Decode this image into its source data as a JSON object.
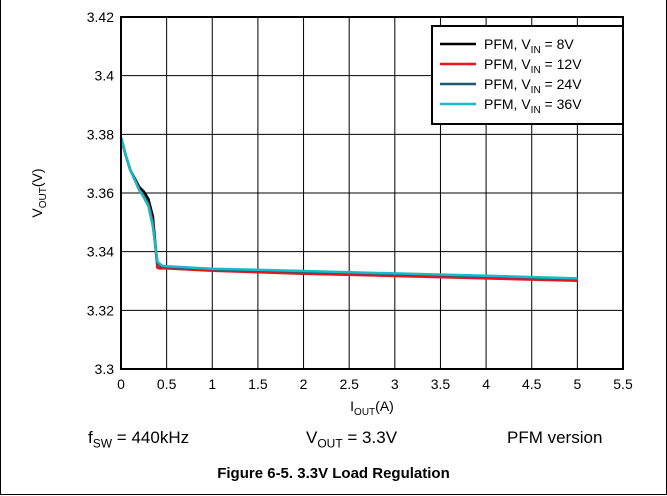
{
  "chart_data": {
    "type": "line",
    "xlabel": {
      "main": "I",
      "sub": "OUT",
      "unit": "(A)"
    },
    "ylabel": {
      "main": "V",
      "sub": "OUT",
      "unit": "(V)"
    },
    "xlim": [
      0,
      5.5
    ],
    "ylim": [
      3.3,
      3.42
    ],
    "xticks": [
      "0",
      "0.5",
      "1",
      "1.5",
      "2",
      "2.5",
      "3",
      "3.5",
      "4",
      "4.5",
      "5",
      "5.5"
    ],
    "yticks": [
      "3.3",
      "3.32",
      "3.34",
      "3.36",
      "3.38",
      "3.4",
      "3.42"
    ],
    "grid": true,
    "legend_position": "top-right",
    "series": [
      {
        "name": "PFM, V_IN = 8V",
        "label_main": "PFM, V",
        "label_sub": "IN",
        "label_rest": " = 8V",
        "color": "#000000",
        "x": [
          0,
          0.05,
          0.1,
          0.15,
          0.2,
          0.25,
          0.3,
          0.35,
          0.4,
          0.42,
          0.5,
          1,
          2,
          3,
          4,
          5
        ],
        "y": [
          3.379,
          3.373,
          3.368,
          3.365,
          3.362,
          3.3605,
          3.358,
          3.352,
          3.3345,
          3.3345,
          3.3345,
          3.3338,
          3.3328,
          3.332,
          3.3312,
          3.3303
        ]
      },
      {
        "name": "PFM, V_IN = 12V",
        "label_main": "PFM, V",
        "label_sub": "IN",
        "label_rest": " = 12V",
        "color": "#e8141e",
        "x": [
          0,
          0.05,
          0.1,
          0.15,
          0.2,
          0.25,
          0.3,
          0.35,
          0.4,
          0.42,
          0.5,
          1,
          2,
          3,
          4,
          5
        ],
        "y": [
          3.379,
          3.373,
          3.368,
          3.3645,
          3.361,
          3.359,
          3.3565,
          3.35,
          3.3345,
          3.3343,
          3.3343,
          3.3335,
          3.3325,
          3.3317,
          3.3309,
          3.3301
        ]
      },
      {
        "name": "PFM, V_IN = 24V",
        "label_main": "PFM, V",
        "label_sub": "IN",
        "label_rest": " = 24V",
        "color": "#1e5a6e",
        "x": [
          0,
          0.05,
          0.1,
          0.15,
          0.2,
          0.25,
          0.3,
          0.35,
          0.4,
          0.45,
          0.5,
          1,
          2,
          3,
          4,
          5
        ],
        "y": [
          3.379,
          3.373,
          3.368,
          3.3645,
          3.361,
          3.359,
          3.356,
          3.349,
          3.336,
          3.335,
          3.3348,
          3.334,
          3.3332,
          3.3324,
          3.3316,
          3.3308
        ]
      },
      {
        "name": "PFM, V_IN = 36V",
        "label_main": "PFM, V",
        "label_sub": "IN",
        "label_rest": " = 36V",
        "color": "#1ab8c8",
        "x": [
          0,
          0.05,
          0.1,
          0.15,
          0.2,
          0.25,
          0.3,
          0.35,
          0.4,
          0.45,
          0.5,
          1,
          2,
          3,
          4,
          5
        ],
        "y": [
          3.379,
          3.373,
          3.368,
          3.3645,
          3.361,
          3.3585,
          3.3555,
          3.3485,
          3.3365,
          3.3352,
          3.335,
          3.3342,
          3.3334,
          3.3326,
          3.3318,
          3.3309
        ]
      }
    ]
  },
  "conditions": {
    "fsw": {
      "main": "f",
      "sub": "SW",
      "rest": " = 440kHz"
    },
    "vout": {
      "main": "V",
      "sub": "OUT",
      "rest": " = 3.3V"
    },
    "version": "PFM version"
  },
  "caption": "Figure 6-5. 3.3V Load Regulation"
}
